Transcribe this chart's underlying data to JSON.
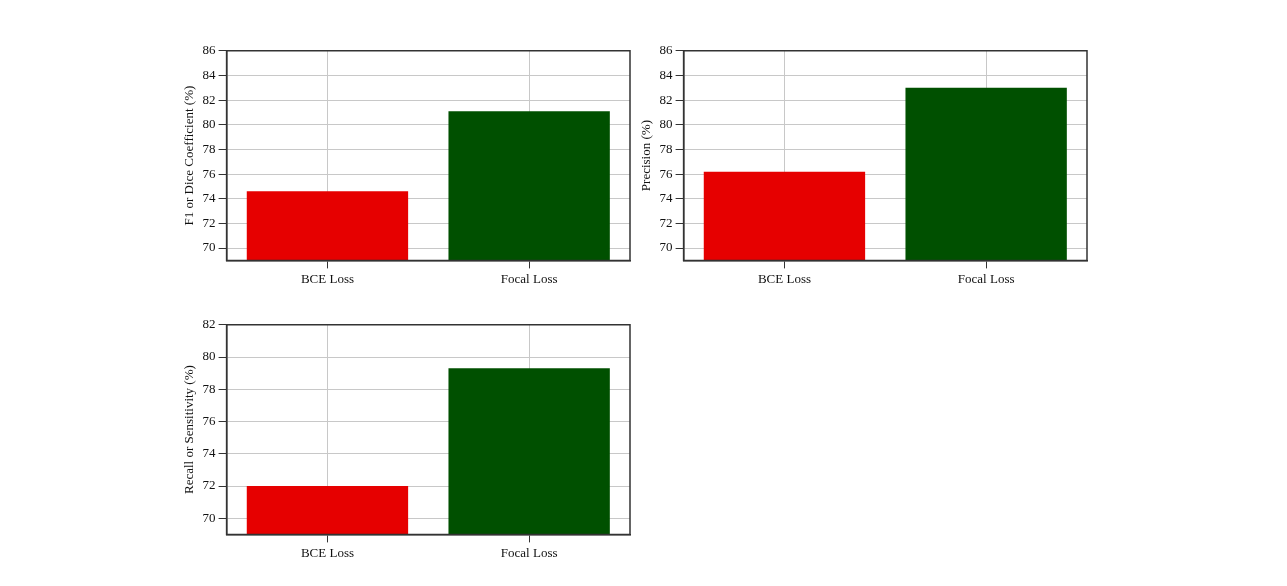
{
  "chart_data": [
    {
      "type": "bar",
      "ylabel": "F1 or Dice Coefficient (%)",
      "categories": [
        "BCE Loss",
        "Focal Loss"
      ],
      "values": [
        74.6,
        81.1
      ],
      "colors": [
        "#e60000",
        "#005000"
      ],
      "ylim": [
        69,
        86
      ],
      "yticks": [
        70,
        72,
        74,
        76,
        78,
        80,
        82,
        84,
        86
      ],
      "grid": true
    },
    {
      "type": "bar",
      "ylabel": "Precision (%)",
      "categories": [
        "BCE Loss",
        "Focal Loss"
      ],
      "values": [
        76.2,
        83.0
      ],
      "colors": [
        "#e60000",
        "#005000"
      ],
      "ylim": [
        69,
        86
      ],
      "yticks": [
        70,
        72,
        74,
        76,
        78,
        80,
        82,
        84,
        86
      ],
      "grid": true
    },
    {
      "type": "bar",
      "ylabel": "Recall or Sensitivity (%)",
      "categories": [
        "BCE Loss",
        "Focal Loss"
      ],
      "values": [
        72.0,
        79.3
      ],
      "colors": [
        "#e60000",
        "#005000"
      ],
      "ylim": [
        69,
        82
      ],
      "yticks": [
        70,
        72,
        74,
        76,
        78,
        80,
        82
      ],
      "grid": true
    }
  ]
}
